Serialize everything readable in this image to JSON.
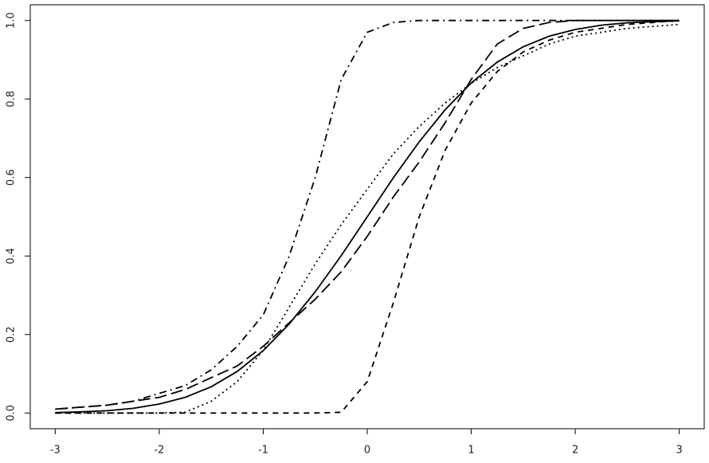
{
  "chart_data": {
    "type": "line",
    "x": [
      -3,
      -2.75,
      -2.5,
      -2.25,
      -2,
      -1.75,
      -1.5,
      -1.25,
      -1,
      -0.75,
      -0.5,
      -0.25,
      0,
      0.25,
      0.5,
      0.75,
      1,
      1.25,
      1.5,
      1.75,
      2,
      2.25,
      2.5,
      2.75,
      3
    ],
    "series": [
      {
        "color": "#000000",
        "dash": "solid",
        "values": [
          0.001,
          0.003,
          0.006,
          0.012,
          0.023,
          0.04,
          0.067,
          0.106,
          0.159,
          0.227,
          0.309,
          0.401,
          0.5,
          0.599,
          0.691,
          0.773,
          0.841,
          0.894,
          0.933,
          0.96,
          0.977,
          0.988,
          0.994,
          0.997,
          0.999
        ]
      },
      {
        "color": "#000000",
        "dash": "dotted",
        "values": [
          0,
          0,
          0,
          0,
          0,
          0.002,
          0.03,
          0.08,
          0.16,
          0.27,
          0.38,
          0.48,
          0.57,
          0.66,
          0.73,
          0.79,
          0.84,
          0.88,
          0.91,
          0.94,
          0.96,
          0.97,
          0.98,
          0.985,
          0.99
        ]
      },
      {
        "color": "#000000",
        "dash": "longdash",
        "values": [
          0.01,
          0.015,
          0.02,
          0.03,
          0.04,
          0.06,
          0.09,
          0.12,
          0.17,
          0.23,
          0.29,
          0.36,
          0.45,
          0.55,
          0.64,
          0.74,
          0.85,
          0.94,
          0.98,
          0.995,
          1,
          1,
          1,
          1,
          1
        ]
      },
      {
        "color": "#000000",
        "dash": "dashed",
        "values": [
          0,
          0,
          0,
          0,
          0,
          0,
          0,
          0,
          0,
          0,
          0,
          0.002,
          0.08,
          0.28,
          0.5,
          0.67,
          0.79,
          0.87,
          0.92,
          0.95,
          0.97,
          0.98,
          0.99,
          0.995,
          1
        ]
      },
      {
        "color": "#000000",
        "dash": "dotdash",
        "values": [
          0.01,
          0.015,
          0.02,
          0.03,
          0.05,
          0.07,
          0.11,
          0.17,
          0.25,
          0.4,
          0.6,
          0.85,
          0.97,
          0.995,
          1,
          1,
          1,
          1,
          1,
          1,
          1,
          1,
          1,
          1,
          1
        ]
      }
    ],
    "xlim": [
      -3.24,
      3.24
    ],
    "ylim": [
      -0.04,
      1.04
    ],
    "xticks": [
      -3,
      -2,
      -1,
      0,
      1,
      2,
      3
    ],
    "yticks": [
      {
        "value": 0,
        "label": "0.0"
      },
      {
        "value": 0.2,
        "label": "0.2"
      },
      {
        "value": 0.4,
        "label": "0.4"
      },
      {
        "value": 0.6,
        "label": "0.6"
      },
      {
        "value": 0.8,
        "label": "0.8"
      },
      {
        "value": 1,
        "label": "1.0"
      }
    ],
    "grid": false
  }
}
